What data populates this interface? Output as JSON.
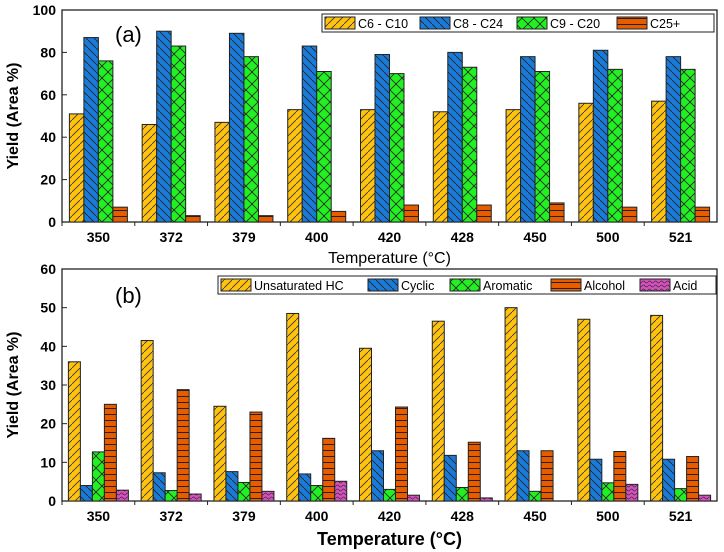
{
  "colors": {
    "c1": "#FFC20E",
    "c2": "#1A7AD8",
    "c3": "#22F022",
    "c4": "#E85C00",
    "c5": "#D84FC0"
  },
  "chart_data": [
    {
      "type": "bar",
      "panel_label": "(a)",
      "xlabel": "Temperature (°C)",
      "ylabel": "Yield (Area %)",
      "ylim": [
        0,
        100
      ],
      "yticks": [
        0,
        20,
        40,
        60,
        80,
        100
      ],
      "categories": [
        "350",
        "372",
        "379",
        "400",
        "420",
        "428",
        "450",
        "500",
        "521"
      ],
      "legend_position": "top-right",
      "series": [
        {
          "name": "C6 - C10",
          "values": [
            51,
            46,
            47,
            53,
            53,
            52,
            53,
            56,
            57
          ]
        },
        {
          "name": "C8 - C24",
          "values": [
            87,
            90,
            89,
            83,
            79,
            80,
            78,
            81,
            78
          ]
        },
        {
          "name": "C9 - C20",
          "values": [
            76,
            83,
            78,
            71,
            70,
            73,
            71,
            72,
            72
          ]
        },
        {
          "name": "C25+",
          "values": [
            7,
            3,
            3,
            5,
            8,
            8,
            9,
            7,
            7
          ]
        }
      ]
    },
    {
      "type": "bar",
      "panel_label": "(b)",
      "xlabel": "Temperature (°C)",
      "ylabel": "Yield (Area %)",
      "ylim": [
        0,
        60
      ],
      "yticks": [
        0,
        10,
        20,
        30,
        40,
        50,
        60
      ],
      "categories": [
        "350",
        "372",
        "379",
        "400",
        "420",
        "428",
        "450",
        "500",
        "521"
      ],
      "legend_position": "top-right",
      "series": [
        {
          "name": "Unsaturated HC",
          "values": [
            36,
            41.5,
            24.5,
            48.5,
            39.5,
            46.5,
            50,
            47,
            48
          ]
        },
        {
          "name": "Cyclic",
          "values": [
            4,
            7.3,
            7.6,
            7,
            13,
            11.8,
            13,
            10.8,
            10.8
          ]
        },
        {
          "name": "Aromatic",
          "values": [
            12.7,
            2.7,
            4.8,
            4,
            3,
            3.5,
            2.5,
            4.7,
            3.2
          ]
        },
        {
          "name": "Alcohol",
          "values": [
            25,
            28.8,
            23,
            16.2,
            24.3,
            15.2,
            13,
            12.8,
            11.5
          ]
        },
        {
          "name": "Acid",
          "values": [
            2.8,
            1.8,
            2.5,
            5.1,
            1.5,
            0.8,
            0,
            4.3,
            1.5
          ]
        }
      ]
    }
  ]
}
